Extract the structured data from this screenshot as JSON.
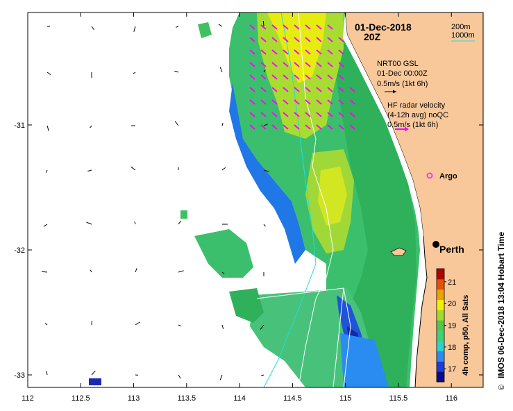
{
  "title": {
    "date": "01-Dec-2018",
    "time": "20Z"
  },
  "isobaths": {
    "labels": [
      "200m",
      "1000m"
    ],
    "color_200m": "#000000",
    "color_1000m": "#22dddd"
  },
  "model_currents": {
    "name": "NRT00 GSL",
    "time": "01-Dec 00:00Z",
    "scale": "0.5m/s (1kt 6h)",
    "arrow_color": "#000000"
  },
  "radar_currents": {
    "name": "HF radar velocity",
    "averaging": "(4-12h avg) noQC",
    "scale": "0.5m/s (1kt 6h)",
    "arrow_color": "#ff00ff"
  },
  "argo": {
    "label": "Argo",
    "color": "#ff33ff"
  },
  "city": {
    "label": "Perth"
  },
  "colorbar": {
    "title": "4h comp, p50, All Sats",
    "ticks": [
      "17",
      "18",
      "19",
      "20",
      "21"
    ],
    "min": 16.4,
    "max": 21.6,
    "colors": [
      "#0a0a8c",
      "#1a3cdc",
      "#2a8cf0",
      "#2ad2d2",
      "#3cd278",
      "#50c850",
      "#a0dc28",
      "#f0f000",
      "#f0a000",
      "#e65000",
      "#b40000"
    ]
  },
  "credit": "IMOS 06-Dec-2018 13:04 Hobart Time",
  "copyright": "©",
  "axes": {
    "x_ticks": [
      "112",
      "112.5",
      "113",
      "113.5",
      "114",
      "114.5",
      "115",
      "115.5",
      "116"
    ],
    "x_values": [
      112,
      112.5,
      113,
      113.5,
      114,
      114.5,
      115,
      115.5,
      116
    ],
    "y_ticks": [
      "-31",
      "-32",
      "-33"
    ],
    "y_values": [
      -31,
      -32,
      -33
    ],
    "lon_range": [
      112,
      116.3
    ],
    "lat_range": [
      -33.1,
      -30.1
    ]
  },
  "colors": {
    "land": "#f8c89a",
    "sea_bg": "#ffffff",
    "grid": "#000000"
  }
}
